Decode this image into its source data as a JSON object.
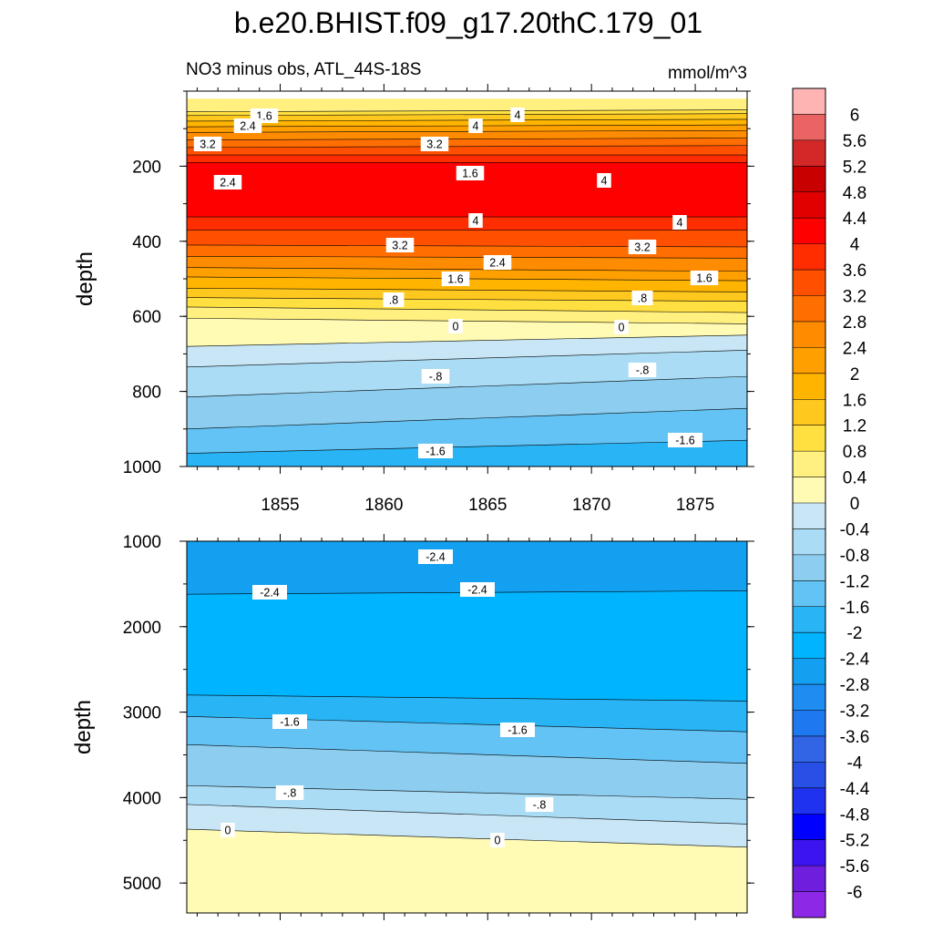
{
  "chart_data": {
    "type": "contour",
    "title": "b.e20.BHIST.f09_g17.20thC.179_01",
    "subtitle_left": "NO3 minus obs, ATL_44S-18S",
    "subtitle_right": "mmol/m^3",
    "x_ticks": [
      "1855",
      "1860",
      "1865",
      "1870",
      "1875"
    ],
    "x_tick_values": [
      1855,
      1860,
      1865,
      1870,
      1875
    ],
    "x_range": [
      1850.5,
      1877.5
    ],
    "colorbar_labels": [
      "6",
      "5.6",
      "5.2",
      "4.8",
      "4.4",
      "4",
      "3.6",
      "3.2",
      "2.8",
      "2.4",
      "2",
      "1.6",
      "1.2",
      "0.8",
      "0.4",
      "0",
      "-0.4",
      "-0.8",
      "-1.2",
      "-1.6",
      "-2",
      "-2.4",
      "-2.8",
      "-3.2",
      "-3.6",
      "-4",
      "-4.4",
      "-4.8",
      "-5.2",
      "-5.6",
      "-6"
    ],
    "colorbar_colors": [
      "#ffb4b4",
      "#eb6464",
      "#d22828",
      "#c80000",
      "#e10000",
      "#ff0000",
      "#ff2d00",
      "#ff5000",
      "#ff6e00",
      "#ff8c00",
      "#ffa000",
      "#ffb400",
      "#ffc81e",
      "#ffe040",
      "#fff080",
      "#fffab4",
      "#c8e6f5",
      "#aadcf5",
      "#8ccdf0",
      "#64c3f5",
      "#28b4f5",
      "#00b4ff",
      "#14a0f0",
      "#1e8cf0",
      "#1e78f0",
      "#3264e6",
      "#2850e6",
      "#1e32f0",
      "#0000ff",
      "#3c14f0",
      "#6e1edc",
      "#8c28e6"
    ],
    "panels": [
      {
        "name": "upper",
        "ylabel": "depth",
        "y_range": [
          0,
          1000
        ],
        "y_ticks": [
          "200",
          "400",
          "600",
          "800",
          "1000"
        ],
        "y_tick_values": [
          200,
          400,
          600,
          800,
          1000
        ],
        "contour_labels": [
          "1.6",
          "2.4",
          "3.2",
          "4",
          "4",
          "3.2",
          "2.4",
          "1.6",
          "4",
          "4",
          "4",
          "3.2",
          "3.2",
          "2.4",
          "1.6",
          "1.6",
          ".8",
          ".8",
          "0",
          "0",
          "-.8",
          "-.8",
          "-1.6",
          "-1.6"
        ],
        "bands": [
          {
            "value_range": [
              0.4,
              0.8
            ],
            "depth_left": 20,
            "depth_right": 20
          },
          {
            "value_range": [
              0.8,
              1.2
            ],
            "depth_left": 55,
            "depth_right": 50
          },
          {
            "value_range": [
              1.2,
              1.6
            ],
            "depth_left": 65,
            "depth_right": 60
          },
          {
            "value_range": [
              1.6,
              2.0
            ],
            "depth_left": 80,
            "depth_right": 75
          },
          {
            "value_range": [
              2.0,
              2.4
            ],
            "depth_left": 95,
            "depth_right": 90
          },
          {
            "value_range": [
              2.4,
              2.8
            ],
            "depth_left": 110,
            "depth_right": 105
          },
          {
            "value_range": [
              2.8,
              3.2
            ],
            "depth_left": 130,
            "depth_right": 125
          },
          {
            "value_range": [
              3.2,
              3.6
            ],
            "depth_left": 150,
            "depth_right": 145
          },
          {
            "value_range": [
              3.6,
              4.0
            ],
            "depth_left": 170,
            "depth_right": 170
          },
          {
            "value_range": [
              4.0,
              4.4
            ],
            "depth_left": 190,
            "depth_right": 190
          },
          {
            "value_range": [
              3.6,
              4.0
            ],
            "depth_left": 335,
            "depth_right": 335
          },
          {
            "value_range": [
              3.2,
              3.6
            ],
            "depth_left": 370,
            "depth_right": 370
          },
          {
            "value_range": [
              2.8,
              3.2
            ],
            "depth_left": 410,
            "depth_right": 415
          },
          {
            "value_range": [
              2.4,
              2.8
            ],
            "depth_left": 440,
            "depth_right": 445
          },
          {
            "value_range": [
              2.0,
              2.4
            ],
            "depth_left": 470,
            "depth_right": 480
          },
          {
            "value_range": [
              1.6,
              2.0
            ],
            "depth_left": 495,
            "depth_right": 505
          },
          {
            "value_range": [
              1.2,
              1.6
            ],
            "depth_left": 525,
            "depth_right": 535
          },
          {
            "value_range": [
              0.8,
              1.2
            ],
            "depth_left": 550,
            "depth_right": 560
          },
          {
            "value_range": [
              0.4,
              0.8
            ],
            "depth_left": 575,
            "depth_right": 590
          },
          {
            "value_range": [
              0.0,
              0.4
            ],
            "depth_left": 605,
            "depth_right": 620
          },
          {
            "value_range": [
              -0.4,
              0.0
            ],
            "depth_left": 680,
            "depth_right": 650
          },
          {
            "value_range": [
              -0.8,
              -0.4
            ],
            "depth_left": 735,
            "depth_right": 690
          },
          {
            "value_range": [
              -1.2,
              -0.8
            ],
            "depth_left": 815,
            "depth_right": 760
          },
          {
            "value_range": [
              -1.6,
              -1.2
            ],
            "depth_left": 900,
            "depth_right": 845
          },
          {
            "value_range": [
              -2.0,
              -1.6
            ],
            "depth_left": 965,
            "depth_right": 930
          }
        ]
      },
      {
        "name": "lower",
        "ylabel": "depth",
        "y_range": [
          1000,
          5350
        ],
        "y_ticks": [
          "1000",
          "2000",
          "3000",
          "4000",
          "5000"
        ],
        "y_tick_values": [
          1000,
          2000,
          3000,
          4000,
          5000
        ],
        "contour_labels": [
          "-2.4",
          "-2.4",
          "-2.4",
          "-1.6",
          "-1.6",
          "-.8",
          "-.8",
          "0",
          "0"
        ],
        "bands": [
          {
            "value_range": [
              -2.8,
              -2.4
            ],
            "depth_left": 1000,
            "depth_right": 1000
          },
          {
            "value_range": [
              -2.4,
              -2.0
            ],
            "depth_left": 1620,
            "depth_right": 1580
          },
          {
            "value_range": [
              -2.0,
              -1.6
            ],
            "depth_left": 2800,
            "depth_right": 2870
          },
          {
            "value_range": [
              -1.6,
              -1.2
            ],
            "depth_left": 3050,
            "depth_right": 3230
          },
          {
            "value_range": [
              -1.2,
              -0.8
            ],
            "depth_left": 3380,
            "depth_right": 3600
          },
          {
            "value_range": [
              -0.8,
              -0.4
            ],
            "depth_left": 3860,
            "depth_right": 4020
          },
          {
            "value_range": [
              -0.4,
              0.0
            ],
            "depth_left": 4080,
            "depth_right": 4310
          },
          {
            "value_range": [
              0.0,
              0.4
            ],
            "depth_left": 4370,
            "depth_right": 4580
          }
        ]
      }
    ]
  }
}
